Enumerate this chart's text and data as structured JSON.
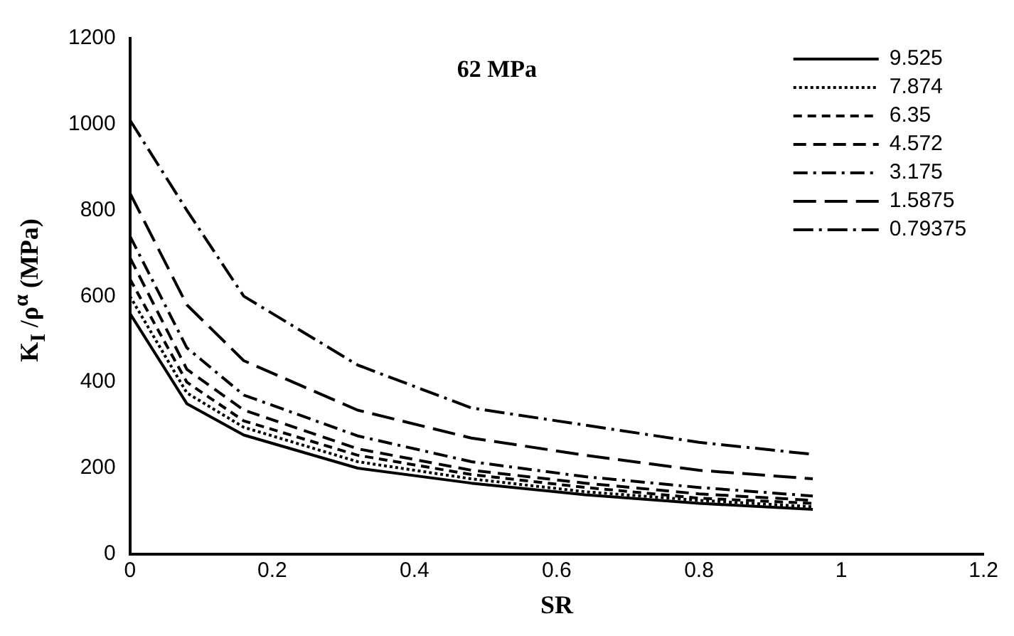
{
  "chart_data": {
    "type": "line",
    "xlabel": "SR",
    "ylabel": "K$_{I}$ /ρ$^{α}$  (MPa)",
    "annotations": [
      "62 MPa"
    ],
    "x": [
      0,
      0.08,
      0.16,
      0.32,
      0.48,
      0.64,
      0.8,
      0.96
    ],
    "xlim": [
      0,
      1.2
    ],
    "xticks": [
      0,
      0.2,
      0.4,
      0.6,
      0.8,
      1,
      1.2
    ],
    "ylim": [
      0,
      1200
    ],
    "yticks": [
      0,
      200,
      400,
      600,
      800,
      1000,
      1200
    ],
    "grid": false,
    "legend": "top right",
    "marker": "none",
    "series": [
      {
        "name": "9.525",
        "color": "#000000",
        "line_style": "solid",
        "values": [
          560,
          350,
          277,
          200,
          165,
          138,
          118,
          104
        ]
      },
      {
        "name": "7.874",
        "color": "#000000",
        "line_style": "dotted",
        "values": [
          600,
          375,
          295,
          215,
          175,
          145,
          125,
          110
        ]
      },
      {
        "name": "6.35",
        "color": "#000000",
        "line_style": "dashed",
        "values": [
          640,
          400,
          310,
          230,
          185,
          155,
          130,
          118
        ]
      },
      {
        "name": "4.572",
        "color": "#000000",
        "line_style": "dashed",
        "values": [
          690,
          430,
          335,
          245,
          195,
          165,
          140,
          125
        ]
      },
      {
        "name": "3.175",
        "color": "#000000",
        "line_style": "dashed",
        "values": [
          740,
          480,
          370,
          275,
          215,
          180,
          155,
          135
        ]
      },
      {
        "name": "1.5875",
        "color": "#000000",
        "line_style": "dashed",
        "values": [
          840,
          580,
          450,
          335,
          270,
          230,
          195,
          175
        ]
      },
      {
        "name": "0.79375",
        "color": "#000000",
        "line_style": "dashed",
        "values": [
          1010,
          800,
          600,
          440,
          340,
          300,
          260,
          232
        ]
      }
    ]
  }
}
